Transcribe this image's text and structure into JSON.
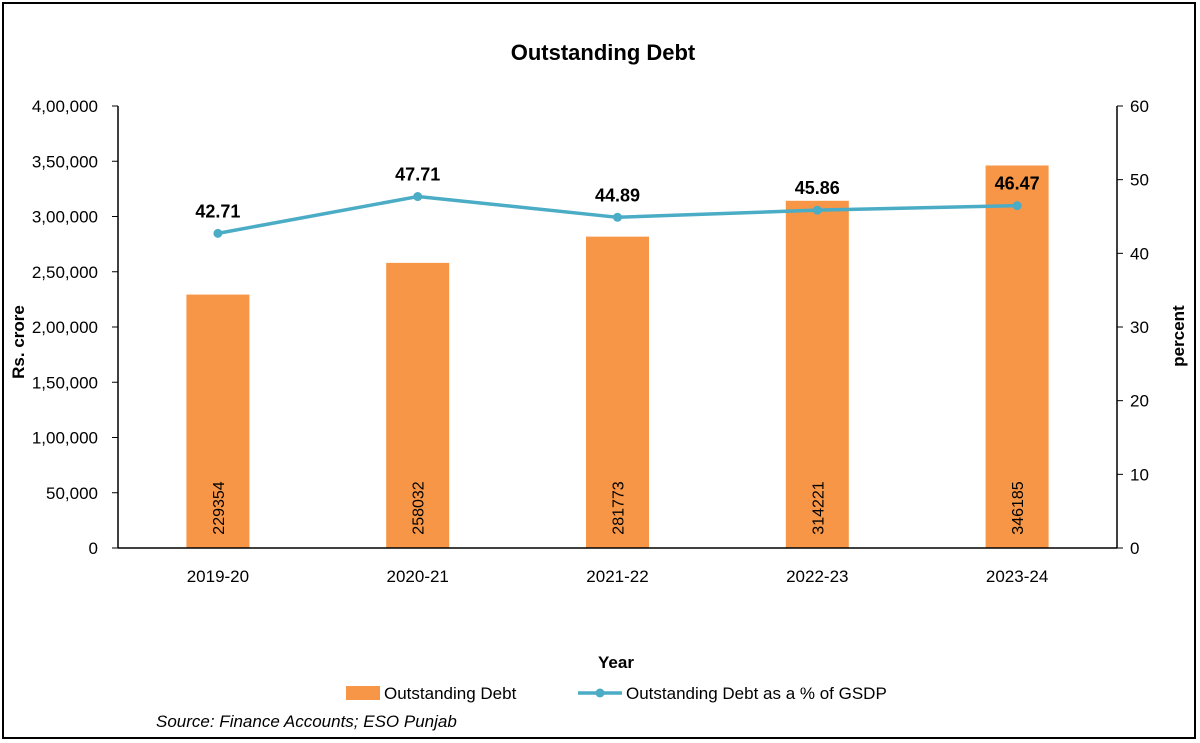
{
  "chart_data": {
    "type": "bar",
    "title": "Outstanding Debt",
    "xlabel": "Year",
    "ylabel": "Rs. crore",
    "y2label": "percent",
    "categories": [
      "2019-20",
      "2020-21",
      "2021-22",
      "2022-23",
      "2023-24"
    ],
    "series": [
      {
        "name": "Outstanding Debt",
        "type": "bar",
        "axis": "left",
        "color": "#F79646",
        "values": [
          229354,
          258032,
          281773,
          314221,
          346185
        ],
        "labels": [
          "229354",
          "258032",
          "281773",
          "314221",
          "346185"
        ]
      },
      {
        "name": "Outstanding Debt as a % of GSDP",
        "type": "line",
        "axis": "right",
        "color": "#4BACC6",
        "values": [
          42.71,
          47.71,
          44.89,
          45.86,
          46.47
        ],
        "labels": [
          "42.71",
          "47.71",
          "44.89",
          "45.86",
          "46.47"
        ]
      }
    ],
    "ylim": [
      0,
      400000
    ],
    "y2lim": [
      0,
      60
    ],
    "yticks": [
      "0",
      "50,000",
      "1,00,000",
      "1,50,000",
      "2,00,000",
      "2,50,000",
      "3,00,000",
      "3,50,000",
      "4,00,000"
    ],
    "y2ticks": [
      "0",
      "10",
      "20",
      "30",
      "40",
      "50",
      "60"
    ],
    "grid": false,
    "legend": "bottom",
    "source": "Source: Finance Accounts;  ESO Punjab"
  }
}
